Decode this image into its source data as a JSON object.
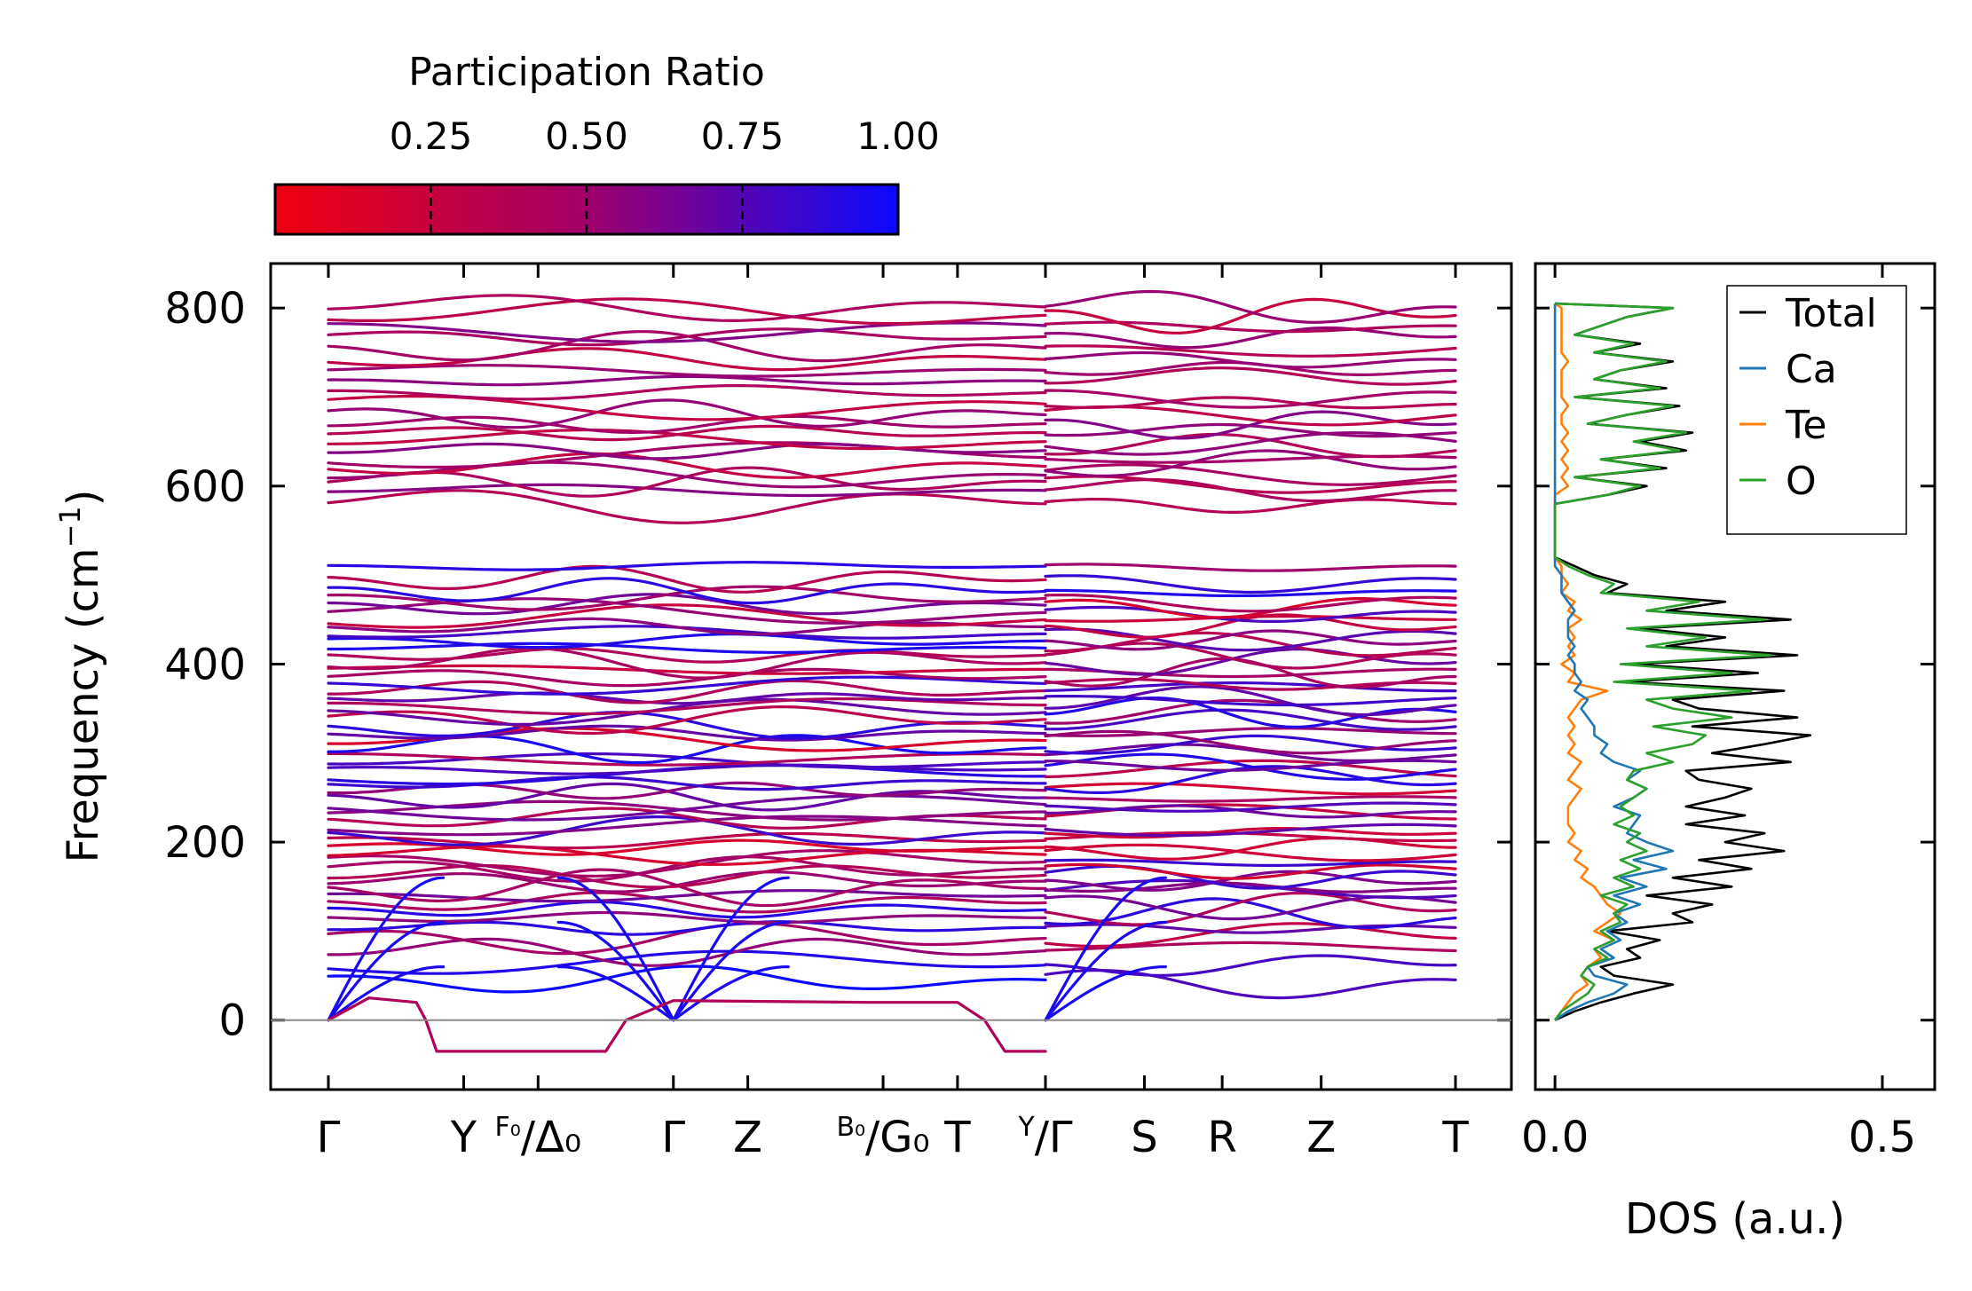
{
  "chart_data": [
    {
      "type": "line",
      "name": "phonon-dispersion",
      "ylabel_main": "Frequency (cm",
      "ylabel_sup": "−1",
      "ylabel_close": ")",
      "xlabel": "",
      "ylim": [
        -78,
        850
      ],
      "yticks": [
        "0",
        "200",
        "400",
        "600",
        "800"
      ],
      "ytick_values": [
        0,
        200,
        400,
        600,
        800
      ],
      "segment1_xlim": [
        0,
        5.3
      ],
      "segment2_xlim": [
        5.3,
        9.6
      ],
      "kpoints": [
        {
          "pos": 0.0,
          "main": "Γ",
          "sup": "",
          "sub": ""
        },
        {
          "pos": 1.0,
          "main": "Y",
          "sup": "",
          "sub": ""
        },
        {
          "pos": 1.55,
          "main": "/Δ₀",
          "sup": "F₀",
          "sub": ""
        },
        {
          "pos": 2.55,
          "main": "Γ",
          "sup": "",
          "sub": ""
        },
        {
          "pos": 3.1,
          "main": "Z",
          "sup": "",
          "sub": ""
        },
        {
          "pos": 4.1,
          "main": "/G₀",
          "sup": "B₀",
          "sub": ""
        },
        {
          "pos": 4.65,
          "main": "T",
          "sup": "",
          "sub": ""
        },
        {
          "pos": 5.3,
          "main": "/Γ",
          "sup": "Y",
          "sub": ""
        },
        {
          "pos": 6.0,
          "main": "S",
          "sup": "",
          "sub": ""
        },
        {
          "pos": 6.55,
          "main": "R",
          "sup": "",
          "sub": ""
        },
        {
          "pos": 7.25,
          "main": "Z",
          "sup": "",
          "sub": ""
        },
        {
          "pos": 8.2,
          "main": "T",
          "sup": "",
          "sub": ""
        }
      ],
      "colorbar": {
        "label": "Participation Ratio",
        "range": [
          0.0,
          1.0
        ],
        "ticks": [
          "0.25",
          "0.50",
          "0.75",
          "1.00"
        ],
        "tick_values": [
          0.25,
          0.5,
          0.75,
          1.0
        ],
        "color_low": "#f00010",
        "color_mid": "#a0006a",
        "color_high": "#0a0aff"
      },
      "optical_high_band_freqs": [
        580,
        595,
        605,
        612,
        622,
        632,
        640,
        650,
        660,
        670,
        680,
        692,
        705,
        718,
        730,
        742,
        755,
        768,
        780,
        792,
        801
      ],
      "optical_mid_band_freqs": [
        170,
        178,
        186,
        194,
        202,
        210,
        218,
        226,
        234,
        242,
        250,
        258,
        266,
        274,
        282,
        290,
        298,
        306,
        314,
        322,
        330,
        338,
        346,
        354,
        362,
        370,
        378,
        386,
        394,
        402,
        410,
        418,
        426,
        434,
        442,
        450,
        458,
        466,
        474,
        482,
        495,
        510
      ],
      "optical_low_band_freqs": [
        45,
        62,
        78,
        92,
        104,
        115,
        124,
        132,
        140,
        148,
        156,
        163
      ],
      "imaginary_mode_min": -35
    },
    {
      "type": "line",
      "name": "density-of-states",
      "xlabel": "DOS (a.u.)",
      "xlim": [
        -0.03,
        0.58
      ],
      "xticks": [
        "0.0",
        "0.5"
      ],
      "xtick_values": [
        0.0,
        0.5
      ],
      "ylim": [
        -78,
        850
      ],
      "legend": [
        {
          "name": "Total",
          "color": "#000000"
        },
        {
          "name": "Ca",
          "color": "#1f77b4"
        },
        {
          "name": "Te",
          "color": "#ff7f0e"
        },
        {
          "name": "O",
          "color": "#2ca02c"
        }
      ],
      "series": {
        "freq": [
          0,
          10,
          20,
          30,
          40,
          50,
          60,
          70,
          80,
          90,
          100,
          110,
          120,
          130,
          140,
          150,
          160,
          170,
          180,
          190,
          200,
          210,
          220,
          230,
          240,
          250,
          260,
          270,
          280,
          290,
          300,
          310,
          320,
          330,
          340,
          350,
          360,
          370,
          380,
          390,
          400,
          410,
          420,
          430,
          440,
          450,
          460,
          470,
          480,
          490,
          500,
          510,
          520,
          540,
          560,
          575,
          580,
          590,
          600,
          610,
          620,
          630,
          640,
          650,
          660,
          670,
          680,
          690,
          700,
          710,
          720,
          730,
          740,
          750,
          760,
          770,
          780,
          790,
          800,
          805
        ],
        "Total": [
          0.0,
          0.03,
          0.07,
          0.12,
          0.18,
          0.09,
          0.07,
          0.13,
          0.11,
          0.16,
          0.08,
          0.21,
          0.18,
          0.24,
          0.14,
          0.27,
          0.18,
          0.3,
          0.22,
          0.35,
          0.26,
          0.32,
          0.2,
          0.29,
          0.2,
          0.26,
          0.3,
          0.22,
          0.2,
          0.36,
          0.24,
          0.32,
          0.39,
          0.21,
          0.37,
          0.22,
          0.18,
          0.35,
          0.11,
          0.31,
          0.12,
          0.37,
          0.17,
          0.26,
          0.13,
          0.36,
          0.17,
          0.26,
          0.08,
          0.11,
          0.06,
          0.03,
          0.0,
          0.0,
          0.0,
          0.0,
          0.0,
          0.08,
          0.14,
          0.03,
          0.17,
          0.07,
          0.2,
          0.13,
          0.21,
          0.05,
          0.11,
          0.19,
          0.03,
          0.17,
          0.06,
          0.1,
          0.18,
          0.06,
          0.13,
          0.03,
          0.07,
          0.11,
          0.18,
          0.0
        ],
        "Ca": [
          0.0,
          0.02,
          0.05,
          0.09,
          0.11,
          0.06,
          0.05,
          0.09,
          0.07,
          0.1,
          0.08,
          0.11,
          0.09,
          0.13,
          0.09,
          0.14,
          0.1,
          0.17,
          0.12,
          0.18,
          0.14,
          0.11,
          0.12,
          0.13,
          0.09,
          0.12,
          0.14,
          0.11,
          0.13,
          0.09,
          0.07,
          0.08,
          0.06,
          0.06,
          0.05,
          0.04,
          0.05,
          0.03,
          0.04,
          0.03,
          0.03,
          0.02,
          0.03,
          0.02,
          0.02,
          0.02,
          0.03,
          0.02,
          0.01,
          0.01,
          0.01,
          0.0,
          0.0,
          0.0,
          0.0,
          0.0,
          0.0,
          0.0,
          0.0,
          0.0,
          0.0,
          0.0,
          0.0,
          0.0,
          0.0,
          0.0,
          0.0,
          0.0,
          0.0,
          0.0,
          0.0,
          0.0,
          0.0,
          0.0,
          0.0,
          0.0,
          0.0,
          0.0,
          0.0,
          0.0
        ],
        "Te": [
          0.0,
          0.01,
          0.02,
          0.03,
          0.05,
          0.04,
          0.05,
          0.07,
          0.06,
          0.09,
          0.06,
          0.08,
          0.1,
          0.08,
          0.07,
          0.06,
          0.04,
          0.05,
          0.03,
          0.04,
          0.02,
          0.03,
          0.02,
          0.02,
          0.02,
          0.03,
          0.04,
          0.02,
          0.03,
          0.04,
          0.02,
          0.03,
          0.02,
          0.03,
          0.02,
          0.03,
          0.04,
          0.08,
          0.02,
          0.03,
          0.01,
          0.03,
          0.02,
          0.03,
          0.02,
          0.04,
          0.02,
          0.03,
          0.01,
          0.02,
          0.01,
          0.01,
          0.0,
          0.0,
          0.0,
          0.0,
          0.0,
          0.0,
          0.02,
          0.01,
          0.02,
          0.01,
          0.02,
          0.01,
          0.02,
          0.01,
          0.01,
          0.02,
          0.01,
          0.01,
          0.01,
          0.01,
          0.02,
          0.01,
          0.01,
          0.01,
          0.01,
          0.01,
          0.01,
          0.0
        ],
        "O": [
          0.0,
          0.01,
          0.03,
          0.05,
          0.06,
          0.04,
          0.05,
          0.08,
          0.06,
          0.09,
          0.07,
          0.1,
          0.09,
          0.11,
          0.07,
          0.12,
          0.09,
          0.13,
          0.1,
          0.14,
          0.11,
          0.13,
          0.09,
          0.12,
          0.1,
          0.12,
          0.14,
          0.11,
          0.12,
          0.18,
          0.14,
          0.21,
          0.23,
          0.15,
          0.27,
          0.18,
          0.14,
          0.3,
          0.09,
          0.27,
          0.1,
          0.33,
          0.14,
          0.23,
          0.11,
          0.32,
          0.14,
          0.22,
          0.07,
          0.09,
          0.05,
          0.02,
          0.0,
          0.0,
          0.0,
          0.0,
          0.0,
          0.08,
          0.13,
          0.03,
          0.16,
          0.07,
          0.19,
          0.12,
          0.2,
          0.05,
          0.11,
          0.18,
          0.03,
          0.16,
          0.06,
          0.1,
          0.17,
          0.06,
          0.12,
          0.03,
          0.07,
          0.11,
          0.18,
          0.0
        ]
      }
    }
  ]
}
